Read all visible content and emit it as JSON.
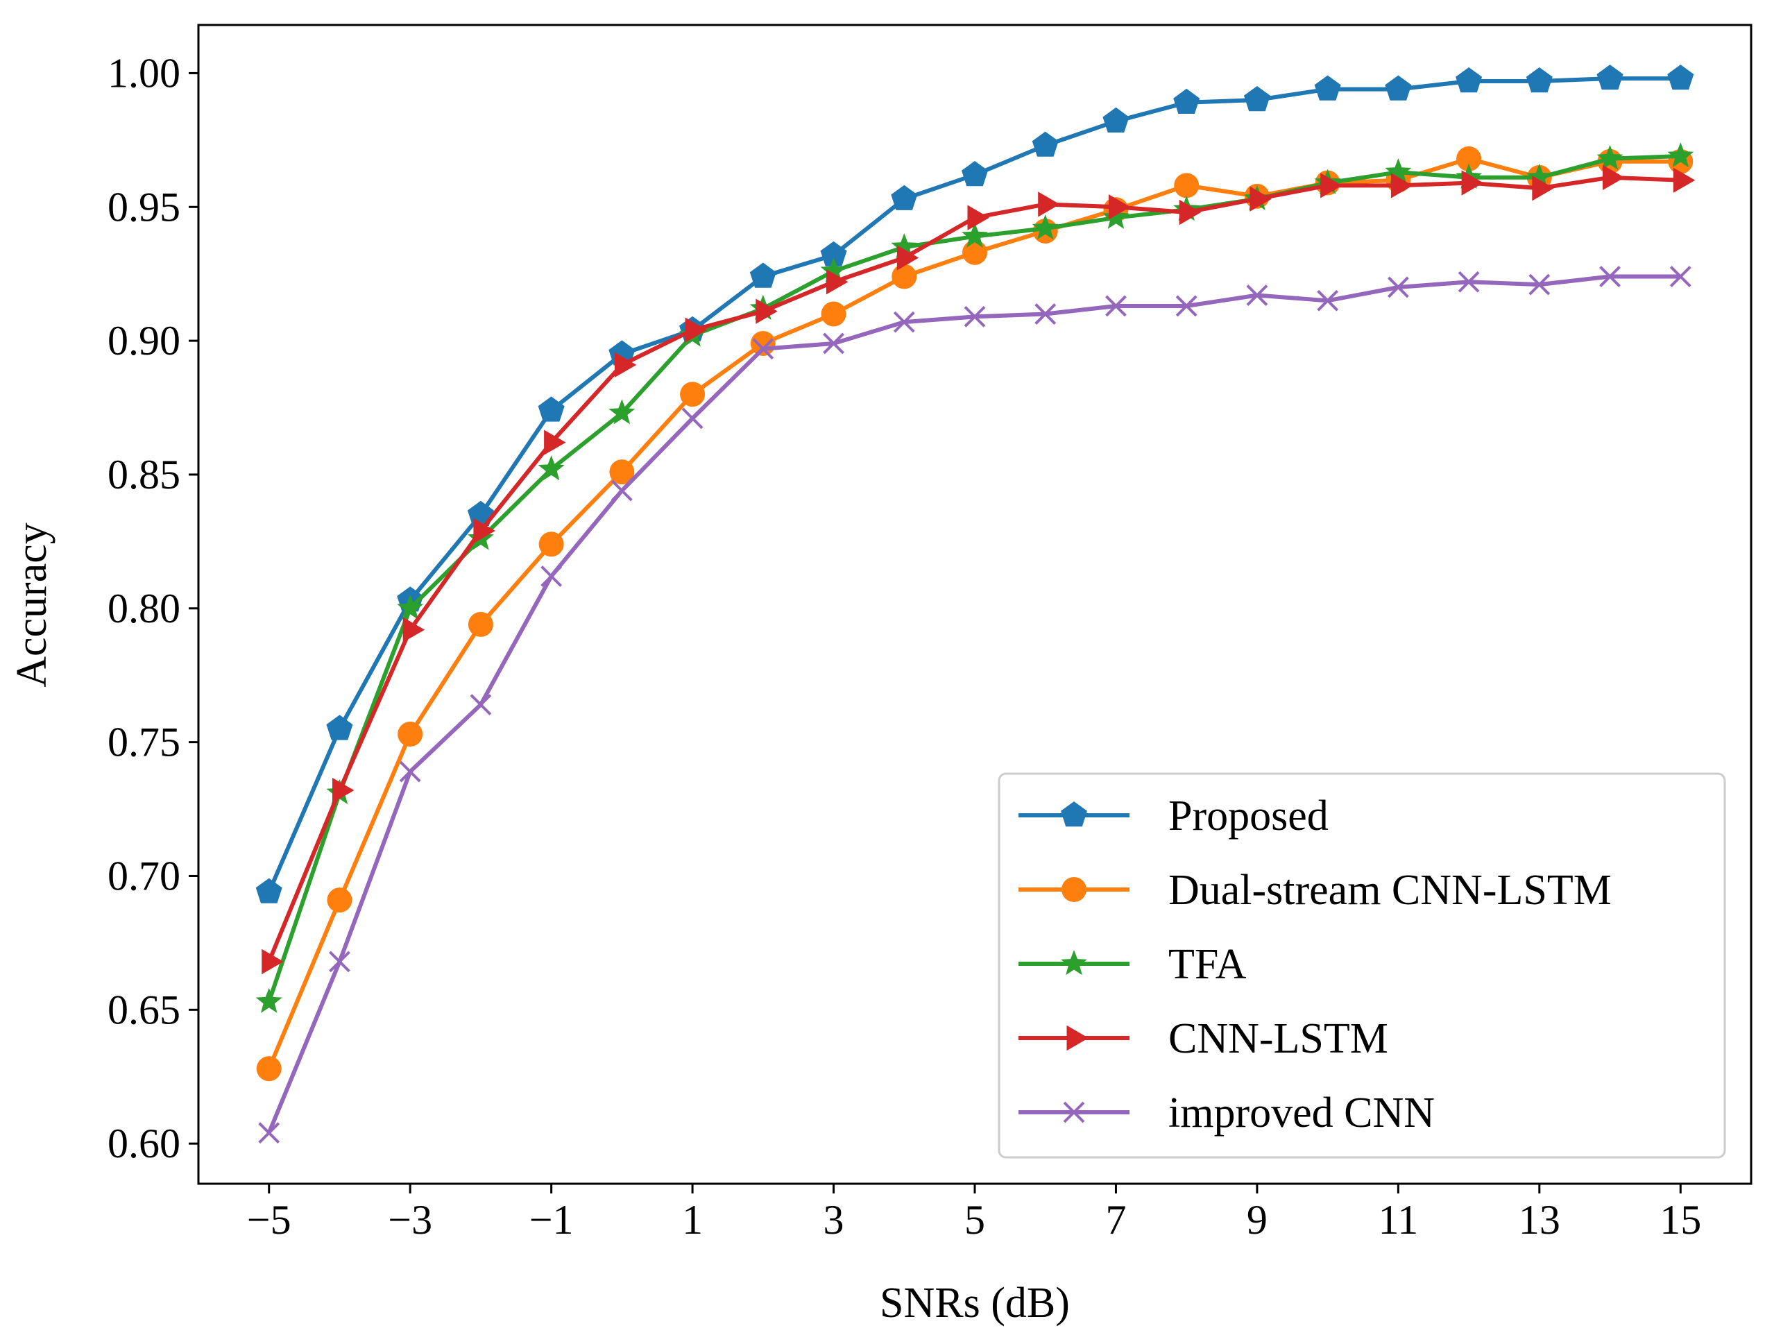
{
  "chart_data": {
    "type": "line",
    "title": "",
    "xlabel": "SNRs (dB)",
    "ylabel": "Accuracy",
    "xlim": [
      -6,
      16
    ],
    "ylim": [
      0.585,
      1.018
    ],
    "x": [
      -5,
      -4,
      -3,
      -2,
      -1,
      0,
      1,
      2,
      3,
      4,
      5,
      6,
      7,
      8,
      9,
      10,
      11,
      12,
      13,
      14,
      15
    ],
    "xticks": [
      -5,
      -3,
      -1,
      1,
      3,
      5,
      7,
      9,
      11,
      13,
      15
    ],
    "xtick_labels": [
      "−5",
      "−3",
      "−1",
      "1",
      "3",
      "5",
      "7",
      "9",
      "11",
      "13",
      "15"
    ],
    "yticks": [
      0.6,
      0.65,
      0.7,
      0.75,
      0.8,
      0.85,
      0.9,
      0.95,
      1.0
    ],
    "ytick_labels": [
      "0.60",
      "0.65",
      "0.70",
      "0.75",
      "0.80",
      "0.85",
      "0.90",
      "0.95",
      "1.00"
    ],
    "grid": false,
    "legend_position": "bottom-right",
    "series": [
      {
        "name": "Proposed",
        "color": "#1f77b4",
        "marker": "pentagon",
        "values": [
          0.694,
          0.755,
          0.803,
          0.835,
          0.874,
          0.895,
          0.904,
          0.924,
          0.932,
          0.953,
          0.962,
          0.973,
          0.982,
          0.989,
          0.99,
          0.994,
          0.994,
          0.997,
          0.997,
          0.998,
          0.998
        ]
      },
      {
        "name": "Dual-stream CNN-LSTM",
        "color": "#ff7f0e",
        "marker": "circle",
        "values": [
          0.628,
          0.691,
          0.753,
          0.794,
          0.824,
          0.851,
          0.88,
          0.899,
          0.91,
          0.924,
          0.933,
          0.941,
          0.949,
          0.958,
          0.954,
          0.959,
          0.96,
          0.968,
          0.961,
          0.967,
          0.967
        ]
      },
      {
        "name": "TFA",
        "color": "#2ca02c",
        "marker": "star",
        "values": [
          0.653,
          0.731,
          0.8,
          0.826,
          0.852,
          0.873,
          0.902,
          0.912,
          0.926,
          0.935,
          0.939,
          0.942,
          0.946,
          0.949,
          0.953,
          0.959,
          0.963,
          0.961,
          0.961,
          0.968,
          0.969
        ]
      },
      {
        "name": "CNN-LSTM",
        "color": "#d62728",
        "marker": "triangle-right",
        "values": [
          0.668,
          0.732,
          0.792,
          0.829,
          0.862,
          0.891,
          0.904,
          0.911,
          0.922,
          0.931,
          0.946,
          0.951,
          0.95,
          0.948,
          0.953,
          0.958,
          0.958,
          0.959,
          0.957,
          0.961,
          0.96
        ]
      },
      {
        "name": "improved CNN",
        "color": "#9467bd",
        "marker": "x",
        "values": [
          0.604,
          0.668,
          0.739,
          0.764,
          0.812,
          0.844,
          0.871,
          0.897,
          0.899,
          0.907,
          0.909,
          0.91,
          0.913,
          0.913,
          0.917,
          0.915,
          0.92,
          0.922,
          0.921,
          0.924,
          0.924
        ]
      }
    ]
  }
}
